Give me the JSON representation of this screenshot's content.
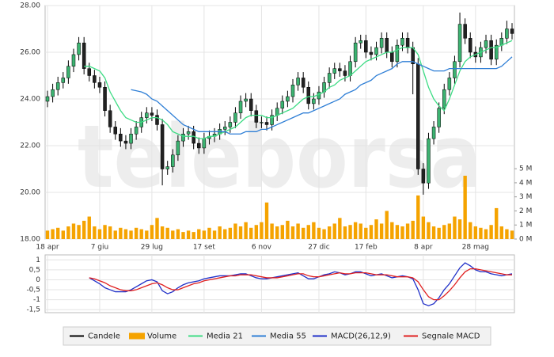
{
  "watermark": "teleborsa",
  "chart_data": [
    {
      "type": "candlestick",
      "categories": [
        "18 apr",
        null,
        null,
        null,
        null,
        null,
        null,
        null,
        null,
        null,
        "7 giu",
        null,
        null,
        null,
        null,
        null,
        null,
        null,
        null,
        null,
        "29 lug",
        null,
        null,
        null,
        null,
        null,
        null,
        null,
        null,
        null,
        "17 set",
        null,
        null,
        null,
        null,
        null,
        null,
        null,
        null,
        null,
        null,
        "6 nov",
        null,
        null,
        null,
        null,
        null,
        null,
        null,
        null,
        null,
        null,
        "27 dic",
        null,
        null,
        null,
        null,
        null,
        null,
        null,
        null,
        "17 feb",
        null,
        null,
        null,
        null,
        null,
        null,
        null,
        null,
        null,
        null,
        "8 apr",
        null,
        null,
        null,
        null,
        null,
        null,
        null,
        null,
        null,
        "28 mag",
        null,
        null,
        null,
        null,
        null,
        null,
        null
      ],
      "ylim": [
        18,
        28
      ],
      "yticks": [
        {
          "value": 18,
          "label": "18.00"
        },
        {
          "value": 20,
          "label": "20.00"
        },
        {
          "value": 22,
          "label": "22.00"
        },
        {
          "value": 24,
          "label": "24.00"
        },
        {
          "value": 26,
          "label": "26.00"
        },
        {
          "value": 28,
          "label": "28.00"
        }
      ],
      "y2lim": [
        0,
        16.6
      ],
      "y2ticks": [
        {
          "value": 0,
          "label": "0 M"
        },
        {
          "value": 1,
          "label": "1 M"
        },
        {
          "value": 2,
          "label": "2 M"
        },
        {
          "value": 3,
          "label": "3 M"
        },
        {
          "value": 4,
          "label": "4 M"
        },
        {
          "value": 5,
          "label": "5 M"
        }
      ],
      "grid": true,
      "series": [
        {
          "name": "Candele",
          "type": "candlestick",
          "color": "#000000",
          "up_color": "#3cb371",
          "down_color": "#222222",
          "open": [
            23.9,
            24.1,
            24.4,
            24.7,
            24.9,
            25.4,
            25.9,
            26.4,
            25.3,
            25.0,
            24.7,
            24.5,
            23.5,
            22.8,
            22.5,
            22.2,
            22.1,
            22.5,
            22.8,
            23.2,
            23.4,
            23.3,
            22.9,
            21.0,
            21.1,
            21.6,
            22.2,
            22.5,
            22.6,
            22.1,
            21.9,
            22.3,
            22.4,
            22.5,
            22.7,
            22.8,
            23.0,
            23.4,
            23.9,
            24.0,
            23.5,
            23.0,
            23.0,
            22.9,
            23.3,
            23.6,
            23.9,
            24.1,
            24.6,
            24.9,
            24.5,
            23.8,
            24.0,
            24.3,
            24.7,
            25.1,
            25.3,
            25.2,
            25.0,
            25.6,
            26.4,
            26.5,
            26.0,
            25.9,
            26.2,
            26.6,
            26.0,
            25.6,
            26.3,
            26.6,
            26.2,
            25.5,
            21.0,
            20.4,
            22.3,
            22.8,
            23.6,
            24.4,
            24.9,
            25.6,
            27.2,
            26.6,
            26.0,
            25.8,
            26.2,
            26.5,
            25.7,
            26.3,
            26.6,
            27.0
          ],
          "high": [
            24.35,
            24.65,
            24.95,
            25.15,
            25.65,
            26.15,
            26.65,
            26.65,
            25.55,
            25.25,
            24.95,
            24.75,
            23.75,
            23.05,
            22.75,
            22.45,
            22.75,
            23.05,
            23.45,
            23.65,
            23.65,
            23.55,
            23.15,
            21.35,
            21.85,
            22.45,
            22.75,
            22.85,
            22.85,
            22.35,
            22.55,
            22.65,
            22.75,
            22.95,
            23.05,
            23.25,
            23.65,
            24.15,
            24.25,
            24.25,
            23.75,
            23.25,
            23.25,
            23.55,
            23.85,
            24.15,
            24.35,
            24.85,
            25.15,
            25.15,
            24.75,
            24.25,
            24.55,
            24.95,
            25.35,
            25.55,
            25.55,
            25.45,
            25.85,
            26.65,
            26.75,
            26.75,
            26.25,
            26.45,
            26.85,
            26.85,
            26.25,
            26.55,
            26.85,
            26.85,
            26.45,
            25.75,
            21.25,
            22.55,
            23.05,
            23.85,
            24.65,
            25.15,
            25.85,
            27.7,
            27.45,
            26.85,
            26.25,
            26.45,
            26.75,
            26.75,
            26.55,
            26.85,
            27.35,
            27.25
          ],
          "low": [
            23.65,
            23.85,
            24.15,
            24.45,
            24.65,
            25.15,
            25.65,
            25.05,
            24.75,
            24.45,
            24.25,
            23.25,
            22.55,
            22.25,
            21.95,
            21.85,
            21.85,
            22.25,
            22.55,
            22.95,
            23.05,
            22.65,
            20.3,
            20.75,
            20.85,
            21.35,
            21.95,
            22.25,
            21.85,
            21.65,
            21.65,
            22.05,
            22.15,
            22.25,
            22.45,
            22.55,
            22.75,
            23.15,
            23.65,
            23.25,
            22.75,
            22.75,
            22.65,
            22.65,
            23.05,
            23.35,
            23.65,
            23.85,
            24.35,
            24.25,
            23.55,
            23.55,
            23.75,
            24.05,
            24.45,
            24.85,
            24.95,
            24.75,
            24.75,
            25.35,
            26.15,
            25.75,
            25.65,
            25.65,
            25.95,
            25.75,
            25.35,
            25.35,
            26.05,
            25.95,
            24.2,
            20.75,
            19.9,
            20.15,
            22.05,
            22.55,
            23.35,
            24.15,
            24.65,
            25.35,
            26.35,
            25.75,
            25.55,
            25.55,
            25.95,
            25.45,
            25.45,
            26.05,
            26.35,
            26.55
          ],
          "close": [
            24.1,
            24.4,
            24.7,
            24.9,
            25.4,
            25.9,
            26.4,
            25.3,
            25.0,
            24.7,
            24.5,
            23.5,
            22.8,
            22.5,
            22.2,
            22.1,
            22.5,
            22.8,
            23.2,
            23.4,
            23.3,
            22.9,
            21.0,
            21.1,
            21.6,
            22.2,
            22.5,
            22.6,
            22.1,
            21.9,
            22.3,
            22.4,
            22.5,
            22.7,
            22.8,
            23.0,
            23.4,
            23.9,
            24.0,
            23.5,
            23.0,
            23.0,
            22.9,
            23.3,
            23.6,
            23.9,
            24.1,
            24.6,
            24.9,
            24.5,
            23.8,
            24.0,
            24.3,
            24.7,
            25.1,
            25.3,
            25.2,
            25.0,
            25.6,
            26.4,
            26.5,
            26.0,
            25.9,
            26.2,
            26.6,
            26.0,
            25.6,
            26.3,
            26.6,
            26.2,
            25.5,
            21.0,
            20.4,
            22.3,
            22.8,
            23.6,
            24.4,
            24.9,
            25.6,
            27.2,
            26.6,
            26.0,
            25.8,
            26.2,
            26.5,
            25.7,
            26.3,
            26.6,
            27.0,
            26.8
          ]
        },
        {
          "name": "Volume",
          "type": "bar",
          "axis": "y2",
          "color": "#f5a300",
          "values": [
            0.6,
            0.7,
            0.8,
            0.6,
            0.9,
            1.1,
            1.0,
            1.3,
            1.6,
            0.9,
            0.7,
            1.0,
            0.9,
            0.6,
            0.8,
            0.7,
            0.6,
            0.8,
            0.7,
            0.6,
            1.0,
            1.5,
            0.9,
            0.8,
            0.6,
            0.7,
            0.5,
            0.6,
            0.5,
            0.7,
            0.6,
            0.8,
            0.6,
            0.9,
            0.7,
            0.8,
            1.1,
            0.9,
            1.2,
            0.8,
            1.0,
            1.2,
            2.6,
            1.1,
            0.9,
            1.0,
            1.3,
            0.9,
            1.1,
            0.8,
            1.0,
            1.2,
            0.8,
            0.7,
            0.9,
            1.1,
            1.5,
            0.9,
            1.0,
            1.2,
            1.1,
            0.8,
            1.0,
            1.4,
            1.1,
            2.0,
            1.2,
            1.0,
            0.9,
            1.1,
            1.3,
            3.1,
            1.6,
            1.2,
            0.9,
            0.8,
            1.0,
            1.1,
            1.6,
            1.4,
            4.5,
            1.2,
            0.9,
            0.8,
            0.7,
            1.0,
            2.2,
            0.9,
            0.7,
            0.6
          ]
        },
        {
          "name": "Media 21",
          "type": "line",
          "color": "#3ddc84",
          "values": [
            null,
            null,
            null,
            null,
            null,
            null,
            null,
            25.4,
            25.4,
            25.3,
            25.2,
            24.9,
            24.3,
            23.9,
            23.5,
            23.2,
            23.1,
            23.0,
            23.0,
            23.1,
            23.2,
            23.2,
            23.1,
            22.9,
            22.6,
            22.5,
            22.4,
            22.4,
            22.4,
            22.3,
            22.3,
            22.4,
            22.4,
            22.5,
            22.6,
            22.7,
            22.8,
            23.0,
            23.2,
            23.3,
            23.3,
            23.3,
            23.2,
            23.2,
            23.3,
            23.4,
            23.5,
            23.6,
            23.8,
            24.0,
            24.1,
            24.1,
            24.2,
            24.3,
            24.5,
            24.6,
            24.8,
            24.9,
            25.0,
            25.2,
            25.4,
            25.6,
            25.7,
            25.8,
            25.9,
            26.0,
            26.0,
            26.1,
            26.2,
            26.2,
            26.2,
            25.9,
            25.2,
            24.5,
            24.0,
            23.7,
            23.5,
            24.0,
            24.6,
            25.2,
            25.6,
            25.8,
            25.9,
            26.0,
            26.1,
            26.2,
            26.2,
            26.3,
            26.4,
            26.5
          ]
        },
        {
          "name": "Media 55",
          "type": "line",
          "color": "#2f7fd6",
          "values": [
            null,
            null,
            null,
            null,
            null,
            null,
            null,
            null,
            null,
            null,
            null,
            null,
            null,
            null,
            null,
            null,
            24.4,
            24.35,
            24.3,
            24.2,
            24.0,
            23.9,
            23.7,
            23.5,
            23.3,
            23.1,
            22.9,
            22.8,
            22.7,
            22.6,
            22.6,
            22.6,
            22.6,
            22.6,
            22.6,
            22.5,
            22.5,
            22.5,
            22.6,
            22.6,
            22.6,
            22.7,
            22.7,
            22.8,
            22.9,
            23.0,
            23.1,
            23.2,
            23.3,
            23.4,
            23.4,
            23.5,
            23.6,
            23.7,
            23.8,
            23.9,
            24.0,
            24.2,
            24.3,
            24.4,
            24.6,
            24.7,
            24.8,
            25.0,
            25.1,
            25.2,
            25.3,
            25.5,
            25.6,
            25.6,
            25.6,
            25.5,
            25.4,
            25.3,
            25.2,
            25.2,
            25.2,
            25.3,
            25.3,
            25.3,
            25.3,
            25.3,
            25.3,
            25.3,
            25.3,
            25.3,
            25.3,
            25.4,
            25.6,
            25.8
          ]
        }
      ]
    },
    {
      "type": "line",
      "ylim": [
        -1.65,
        1.25
      ],
      "yticks": [
        1,
        {
          "value": 0.5,
          "label": "0,5"
        },
        0,
        {
          "value": -0.5,
          "label": "-0,5"
        },
        -1,
        {
          "value": -1.5,
          "label": "-1,5"
        }
      ],
      "grid": true,
      "series": [
        {
          "name": "MACD(26,12,9)",
          "color": "#1f2fc8",
          "values": [
            null,
            null,
            null,
            null,
            null,
            null,
            null,
            null,
            0.1,
            -0.05,
            -0.2,
            -0.4,
            -0.5,
            -0.6,
            -0.6,
            -0.6,
            -0.5,
            -0.35,
            -0.2,
            -0.05,
            0.0,
            -0.1,
            -0.55,
            -0.7,
            -0.6,
            -0.4,
            -0.25,
            -0.15,
            -0.1,
            -0.05,
            0.05,
            0.1,
            0.15,
            0.2,
            0.2,
            0.2,
            0.25,
            0.3,
            0.3,
            0.2,
            0.1,
            0.05,
            0.05,
            0.1,
            0.15,
            0.2,
            0.25,
            0.3,
            0.35,
            0.2,
            0.05,
            0.05,
            0.15,
            0.25,
            0.3,
            0.4,
            0.35,
            0.25,
            0.3,
            0.4,
            0.4,
            0.3,
            0.2,
            0.25,
            0.3,
            0.2,
            0.1,
            0.15,
            0.2,
            0.15,
            0.05,
            -0.5,
            -1.2,
            -1.3,
            -1.2,
            -0.9,
            -0.5,
            -0.2,
            0.2,
            0.6,
            0.85,
            0.7,
            0.5,
            0.4,
            0.4,
            0.3,
            0.25,
            0.2,
            0.25,
            0.3
          ]
        },
        {
          "name": "Segnale MACD",
          "color": "#e02020",
          "values": [
            null,
            null,
            null,
            null,
            null,
            null,
            null,
            null,
            0.1,
            0.05,
            -0.05,
            -0.15,
            -0.3,
            -0.4,
            -0.5,
            -0.55,
            -0.55,
            -0.5,
            -0.4,
            -0.3,
            -0.2,
            -0.15,
            -0.25,
            -0.4,
            -0.5,
            -0.5,
            -0.4,
            -0.3,
            -0.2,
            -0.15,
            -0.05,
            0.0,
            0.05,
            0.1,
            0.15,
            0.2,
            0.2,
            0.25,
            0.25,
            0.25,
            0.2,
            0.15,
            0.1,
            0.1,
            0.1,
            0.15,
            0.2,
            0.25,
            0.3,
            0.3,
            0.2,
            0.15,
            0.15,
            0.2,
            0.25,
            0.3,
            0.35,
            0.3,
            0.3,
            0.35,
            0.35,
            0.35,
            0.3,
            0.25,
            0.25,
            0.25,
            0.2,
            0.15,
            0.15,
            0.15,
            0.1,
            -0.1,
            -0.5,
            -0.85,
            -1.0,
            -1.0,
            -0.8,
            -0.55,
            -0.25,
            0.1,
            0.4,
            0.55,
            0.55,
            0.5,
            0.45,
            0.4,
            0.35,
            0.3,
            0.25,
            0.25
          ]
        }
      ]
    }
  ]
}
